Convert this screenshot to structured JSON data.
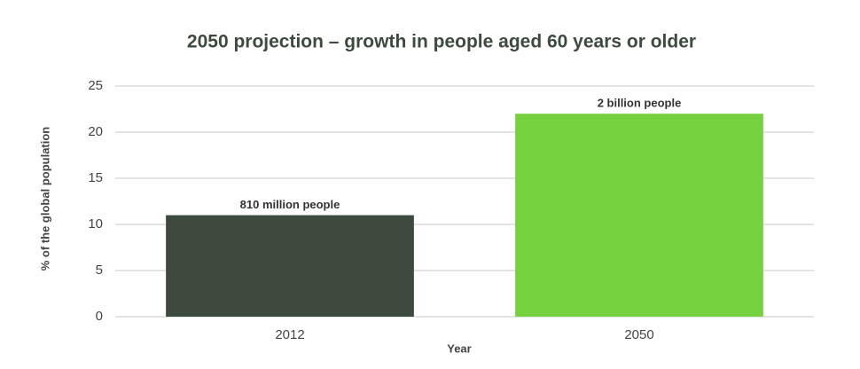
{
  "chart_data": {
    "type": "bar",
    "title": "2050 projection – growth in people aged 60 years or older",
    "x_label": "Year",
    "y_label": "% of the global population",
    "categories": [
      "2012",
      "2050"
    ],
    "values": [
      11,
      22
    ],
    "colors": [
      "#3d4b3e",
      "#76d13f"
    ],
    "annotations": [
      "810 million people",
      "2 billion people"
    ],
    "ylim": [
      0,
      25
    ],
    "yticks": [
      0,
      5,
      10,
      15,
      20,
      25
    ],
    "grid": true
  }
}
